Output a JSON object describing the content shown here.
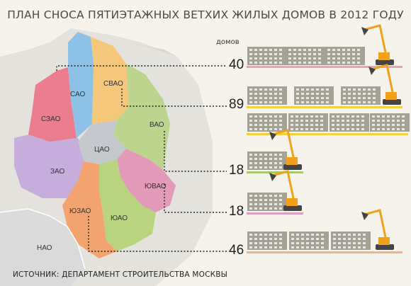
{
  "title": "ПЛАН СНОСА ПЯТИЭТАЖНЫХ ВЕТХИХ ЖИЛЫХ ДОМОВ В 2012 ГОДУ",
  "unit_label": "домов",
  "source": "ИСТОЧНИК: ДЕПАРТАМЕНТ СТРОИТЕЛЬСТВА МОСКВЫ",
  "colors": {
    "САО": "#8ec1e6",
    "СВАО": "#f5c77a",
    "ВАО": "#bcd48e",
    "ЮВАО": "#e39ab9",
    "ЮАО": "#b8d47e",
    "ЮЗАО": "#f3a46e",
    "ЗАО": "#c7addc",
    "СЗАО": "#ec7d8f",
    "ЦАО": "#c4c8cc",
    "НАО": "#dadada",
    "building": "#a4a195",
    "excavator": "#f1a21a"
  },
  "chart_data": {
    "type": "bar",
    "title": "ПЛАН СНОСА ПЯТИЭТАЖНЫХ ВЕТХИХ ЖИЛЫХ ДОМОВ В 2012 ГОДУ",
    "ylabel": "домов",
    "categories": [
      "САО",
      "СВАО",
      "ВАО",
      "ЮВАО",
      "ЮЗАО"
    ],
    "values": [
      40,
      89,
      18,
      18,
      46
    ],
    "colors": [
      "#e8a3b8",
      "#f4d03f",
      "#a5c96b",
      "#dba0c4",
      "#f2b38a"
    ]
  },
  "map_labels": [
    "САО",
    "СВАО",
    "СЗАО",
    "ВАО",
    "ЦАО",
    "ЗАО",
    "ЮВАО",
    "ЮЗАО",
    "ЮАО",
    "НАО"
  ]
}
